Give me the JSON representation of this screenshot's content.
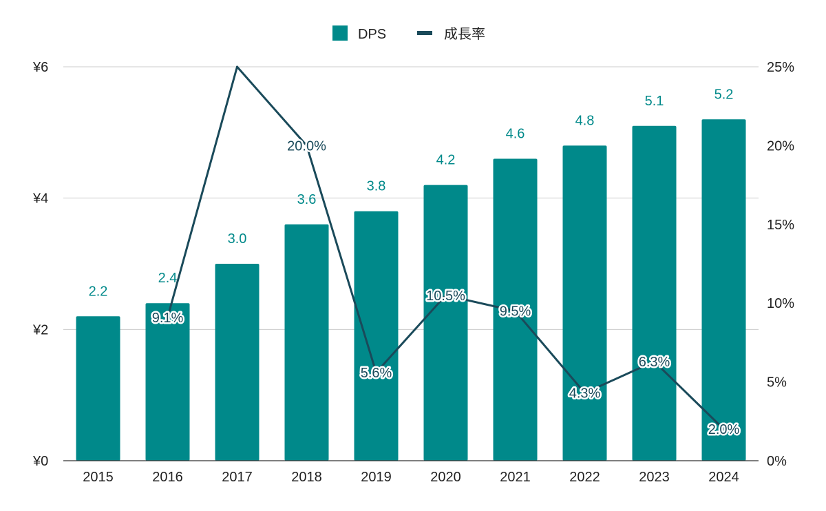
{
  "chart_data": {
    "type": "bar",
    "categories": [
      "2015",
      "2016",
      "2017",
      "2018",
      "2019",
      "2020",
      "2021",
      "2022",
      "2023",
      "2024"
    ],
    "series": [
      {
        "name": "DPS",
        "type": "bar",
        "axis": "left",
        "values": [
          2.2,
          2.4,
          3.0,
          3.6,
          3.8,
          4.2,
          4.6,
          4.8,
          5.1,
          5.2
        ],
        "labels": [
          "2.2",
          "2.4",
          "3.0",
          "3.6",
          "3.8",
          "4.2",
          "4.6",
          "4.8",
          "5.1",
          "5.2"
        ],
        "color": "#00898a"
      },
      {
        "name": "成長率",
        "type": "line",
        "axis": "right",
        "values": [
          null,
          9.1,
          25.0,
          20.0,
          5.6,
          10.5,
          9.5,
          4.3,
          6.3,
          2.0
        ],
        "labels": [
          null,
          "9.1%",
          null,
          "20.0%",
          "5.6%",
          "10.5%",
          "9.5%",
          "4.3%",
          "6.3%",
          "2.0%"
        ],
        "color": "#1a4a5a"
      }
    ],
    "y_left": {
      "ylim": [
        0,
        6
      ],
      "ticks": [
        0,
        2,
        4,
        6
      ],
      "tick_labels": [
        "¥0",
        "¥2",
        "¥4",
        "¥6"
      ]
    },
    "y_right": {
      "ylim": [
        0,
        25
      ],
      "ticks": [
        0,
        5,
        10,
        15,
        20,
        25
      ],
      "tick_labels": [
        "0%",
        "5%",
        "10%",
        "15%",
        "20%",
        "25%"
      ]
    },
    "grid": true,
    "legend": "top-center"
  }
}
